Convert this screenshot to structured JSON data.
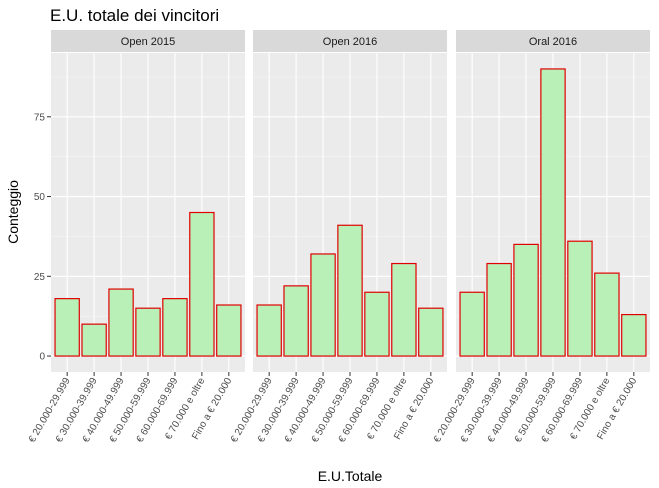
{
  "chart_data": {
    "type": "bar",
    "title": "E.U. totale dei vincitori",
    "xlabel": "E.U.Totale",
    "ylabel": "Conteggio",
    "ylim": [
      -5,
      95
    ],
    "yticks": [
      0,
      25,
      50,
      75
    ],
    "grid": true,
    "bar_fill": "#b8f0b8",
    "bar_stroke": "#e00000",
    "panel_background": "#ebebeb",
    "strip_background": "#d9d9d9",
    "categories": [
      "€ 20.000-29.999",
      "€ 30.000-39.999",
      "€ 40.000-49.999",
      "€ 50.000-59.999",
      "€ 60.000-69.999",
      "€ 70.000 e oltre",
      "Fino a € 20.000"
    ],
    "panels": [
      {
        "label": "Open 2015",
        "values": [
          18,
          10,
          21,
          15,
          18,
          45,
          16
        ]
      },
      {
        "label": "Open 2016",
        "values": [
          16,
          22,
          32,
          41,
          20,
          29,
          15
        ]
      },
      {
        "label": "Oral 2016",
        "values": [
          20,
          29,
          35,
          90,
          36,
          26,
          13
        ]
      }
    ]
  }
}
